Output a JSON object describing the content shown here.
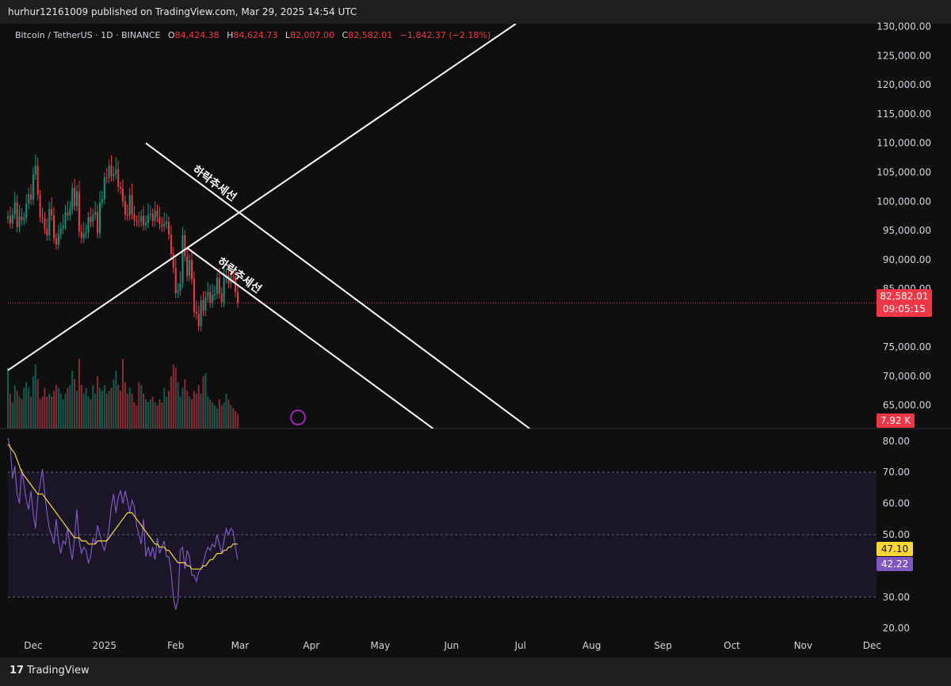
{
  "header": {
    "published_line": "hurhur12161009 published on TradingView.com, Mar 29, 2025 14:54 UTC"
  },
  "legend": {
    "symbol": "Bitcoin / TetherUS · 1D · BINANCE",
    "o_label": "O",
    "o_value": "84,424.38",
    "h_label": "H",
    "h_value": "84,624.73",
    "l_label": "L",
    "l_value": "82,007.00",
    "c_label": "C",
    "c_value": "82,582.01",
    "change": "−1,842.37 (−2.18%)"
  },
  "price_tag": {
    "price": "82,582.01",
    "countdown": "09:05:15"
  },
  "volume_tag": "7.92 K",
  "rsi_tags": {
    "ma": "47.10",
    "rsi": "42.22"
  },
  "annotations": {
    "upper_channel_label": "하락추세선",
    "lower_channel_label": "하락추세선"
  },
  "branding": {
    "logo": "17",
    "name": "TradingView"
  },
  "colors": {
    "up": "#089981",
    "down": "#f23645",
    "rsi": "#7e57c2",
    "rsi_ma": "#fdd835",
    "trendline": "#ffffff",
    "rsi_band": "#1a1628",
    "background": "#0f0f0f"
  },
  "chart_data": [
    {
      "type": "candlestick",
      "title": "Bitcoin / TetherUS · 1D · BINANCE",
      "x_ticks": [
        "Dec",
        "2025",
        "Feb",
        "Mar",
        "Apr",
        "May",
        "Jun",
        "Jul",
        "Aug",
        "Sep",
        "Oct",
        "Nov",
        "Dec"
      ],
      "y_ticks": [
        "65,000.00",
        "70,000.00",
        "75,000.00",
        "85,000.00",
        "90,000.00",
        "95,000.00",
        "100,000.00",
        "105,000.00",
        "110,000.00",
        "115,000.00",
        "120,000.00",
        "125,000.00",
        "130,000.00"
      ],
      "ylim": [
        61000,
        130500
      ],
      "last_close": 82582.01,
      "close_series": [
        97500,
        96200,
        97800,
        99800,
        95600,
        97400,
        96800,
        97200,
        99600,
        101200,
        100300,
        104600,
        106100,
        101100,
        97300,
        97100,
        95300,
        94200,
        98700,
        97600,
        93700,
        92600,
        94400,
        95300,
        96000,
        98100,
        97600,
        98700,
        102300,
        99200,
        101700,
        94800,
        93700,
        94500,
        94600,
        97300,
        96500,
        97700,
        98200,
        94600,
        99800,
        100400,
        104100,
        104000,
        106100,
        104300,
        104700,
        105500,
        102500,
        102200,
        100000,
        97700,
        97600,
        101100,
        97800,
        96700,
        96600,
        96500,
        97500,
        95900,
        96300,
        97700,
        97900,
        96600,
        98400,
        97300,
        96100,
        95700,
        96200,
        96500,
        94300,
        91000,
        88600,
        84300,
        84700,
        86000,
        94200,
        90600,
        87200,
        89900,
        86700,
        81000,
        80700,
        78600,
        83000,
        81200,
        83600,
        84400,
        82600,
        83900,
        84100,
        86900,
        84200,
        82700,
        86800,
        87300,
        86000,
        87100,
        87000,
        84400,
        82600
      ],
      "volume_series": [
        21,
        12,
        9,
        15,
        13,
        11,
        10,
        14,
        16,
        14,
        11,
        18,
        22,
        17,
        10,
        11,
        14,
        11,
        12,
        11,
        13,
        15,
        14,
        12,
        10,
        12,
        14,
        15,
        20,
        17,
        13,
        24,
        15,
        12,
        14,
        11,
        10,
        15,
        12,
        18,
        14,
        13,
        15,
        12,
        13,
        14,
        17,
        20,
        15,
        13,
        24,
        16,
        12,
        14,
        12,
        9,
        8,
        16,
        15,
        12,
        10,
        9,
        10,
        11,
        9,
        8,
        10,
        9,
        14,
        11,
        13,
        18,
        22,
        21,
        16,
        11,
        14,
        17,
        13,
        11,
        10,
        13,
        12,
        15,
        12,
        18,
        19,
        11,
        10,
        9,
        8,
        7,
        10,
        8,
        9,
        12,
        10,
        8,
        7,
        6,
        5
      ],
      "channels": [
        {
          "label": "하락추세선",
          "points": [
            [
              "2025-01-19",
              110000
            ],
            [
              "2025-07-05",
              61000
            ]
          ]
        },
        {
          "label": "하락추세선",
          "points": [
            [
              "2025-02-06",
              92000
            ],
            [
              "2025-05-24",
              61000
            ]
          ]
        },
        {
          "label": "",
          "points": [
            [
              "2024-11-20",
              71000
            ],
            [
              "2025-06-29",
              130500
            ]
          ]
        }
      ]
    },
    {
      "type": "line",
      "title": "",
      "y_ticks": [
        "20.00",
        "30.00",
        "40.00",
        "50.00",
        "60.00",
        "70.00",
        "80.00"
      ],
      "ylim": [
        17,
        84
      ],
      "band": [
        30,
        70
      ],
      "series": [
        {
          "values": [
            81,
            78,
            68,
            72,
            63,
            60,
            71,
            66,
            61,
            58,
            64,
            57,
            52,
            62,
            66,
            71,
            63,
            57,
            52,
            50,
            47,
            55,
            48,
            44,
            48,
            47,
            52,
            46,
            42,
            49,
            58,
            48,
            44,
            46,
            45,
            41,
            43,
            49,
            47,
            53,
            50,
            47,
            45,
            48,
            52,
            59,
            63,
            57,
            62,
            64,
            60,
            64,
            61,
            57,
            61,
            59,
            53,
            50,
            47,
            55,
            43,
            46,
            43,
            46,
            42,
            49,
            44,
            46,
            48,
            43,
            43,
            38,
            30,
            26,
            29,
            45,
            46,
            39,
            45,
            43,
            37,
            37,
            35,
            38,
            39,
            41,
            44,
            46,
            45,
            47,
            46,
            50,
            47,
            44,
            48,
            52,
            50,
            52,
            51,
            46,
            42
          ]
        },
        {
          "values": [
            79,
            78,
            77,
            76,
            74,
            72,
            70,
            69,
            68,
            67,
            66,
            65,
            64,
            63,
            63,
            63,
            62,
            61,
            60,
            59,
            58,
            57,
            56,
            55,
            54,
            53,
            52,
            51,
            50,
            49,
            49,
            49,
            48,
            48,
            48,
            47,
            47,
            47,
            47,
            48,
            48,
            48,
            48,
            48,
            49,
            50,
            51,
            52,
            53,
            54,
            55,
            56,
            57,
            57,
            57,
            56,
            55,
            54,
            53,
            52,
            51,
            50,
            49,
            48,
            47,
            47,
            46,
            46,
            46,
            45,
            45,
            44,
            43,
            42,
            41,
            41,
            41,
            41,
            40,
            40,
            39,
            39,
            39,
            39,
            39,
            40,
            40,
            41,
            42,
            42,
            43,
            44,
            44,
            44,
            45,
            45,
            46,
            46,
            47,
            47,
            47
          ]
        }
      ]
    }
  ]
}
